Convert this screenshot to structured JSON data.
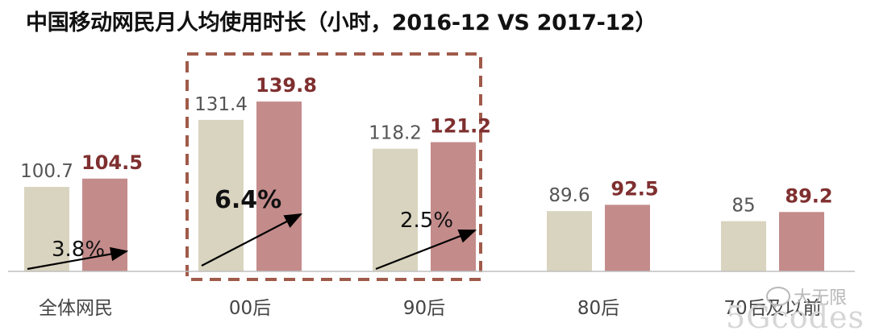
{
  "title": "中国移动网民月人均使用时长（小时，2016-12 VS 2017-12）",
  "colors": {
    "bar_2016": "#d9d4bf",
    "bar_2017": "#c48b8b",
    "label_2016": "#555555",
    "label_2017": "#7f2f2f",
    "highlight_box": "#a05a4a",
    "arrow": "#000000"
  },
  "watermark": {
    "icon": "wechat-bubble-icon",
    "text": "大无限",
    "secondary": "5Gcodes"
  },
  "chart_data": {
    "type": "bar",
    "categories": [
      "全体网民",
      "00后",
      "90后",
      "80后",
      "70后及以前"
    ],
    "series": [
      {
        "values": [
          100.7,
          131.4,
          118.2,
          89.6,
          85
        ]
      },
      {
        "values": [
          104.5,
          139.8,
          121.2,
          92.5,
          89.2
        ]
      }
    ],
    "value_labels": [
      [
        "100.7",
        "131.4",
        "118.2",
        "89.6",
        "85"
      ],
      [
        "104.5",
        "139.8",
        "121.2",
        "92.5",
        "89.2"
      ]
    ],
    "growth_labels": [
      "3.8%",
      "6.4%",
      "2.5%",
      "",
      ""
    ],
    "highlighted_categories": [
      "00后",
      "90后"
    ],
    "xlabel": "",
    "ylabel": "",
    "ylim": [
      62,
      145
    ],
    "grid": false,
    "legend": "none"
  }
}
